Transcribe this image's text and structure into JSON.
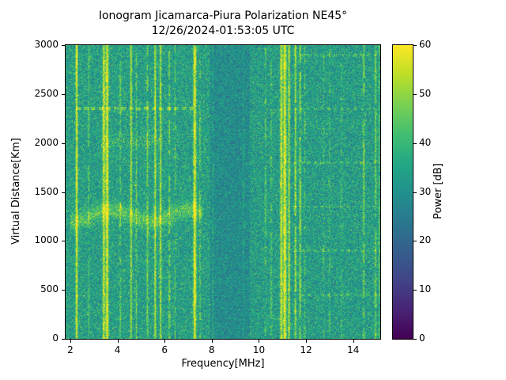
{
  "chart_data": {
    "type": "heatmap",
    "title": "Ionogram Jicamarca-Piura Polarization NE45°",
    "subtitle": "12/26/2024-01:53:05 UTC",
    "xlabel": "Frequency[MHz]",
    "ylabel": "Virtual Distance[Km]",
    "colorbar_label": "Power [dB]",
    "x_range": [
      1.8,
      15.15
    ],
    "y_range": [
      0,
      3000
    ],
    "value_range": [
      0,
      60
    ],
    "x_ticks": [
      2,
      4,
      6,
      8,
      10,
      12,
      14
    ],
    "y_ticks": [
      0,
      500,
      1000,
      1500,
      2000,
      2500,
      3000
    ],
    "colorbar_ticks": [
      0,
      10,
      20,
      30,
      40,
      50,
      60
    ],
    "colormap": "viridis",
    "colormap_stops": [
      [
        0,
        "#440154"
      ],
      [
        0.1,
        "#482475"
      ],
      [
        0.2,
        "#414487"
      ],
      [
        0.3,
        "#355f8d"
      ],
      [
        0.4,
        "#2a788e"
      ],
      [
        0.5,
        "#21918c"
      ],
      [
        0.6,
        "#22a884"
      ],
      [
        0.7,
        "#44bf70"
      ],
      [
        0.8,
        "#7ad151"
      ],
      [
        0.9,
        "#bddf26"
      ],
      [
        1,
        "#fde725"
      ]
    ],
    "noise": {
      "seed": 42
    },
    "regions": [
      {
        "f0": 1.8,
        "f1": 7.95,
        "base_db": 33.5,
        "std_db": 6,
        "speckle_p": 0.025,
        "speckle_amp": 16
      },
      {
        "f0": 7.95,
        "f1": 9.6,
        "base_db": 29.0,
        "std_db": 5,
        "speckle_p": 0.008,
        "speckle_amp": 10
      },
      {
        "f0": 9.6,
        "f1": 15.15,
        "base_db": 33.0,
        "std_db": 6,
        "speckle_p": 0.03,
        "speckle_amp": 13
      }
    ],
    "rfi_lines": [
      {
        "f": 2.27,
        "w": 0.045,
        "amp": 30,
        "duty": 1
      },
      {
        "f": 2.78,
        "w": 0.03,
        "amp": 12,
        "duty": 0.7
      },
      {
        "f": 3.42,
        "w": 0.05,
        "amp": 26,
        "duty": 1
      },
      {
        "f": 3.56,
        "w": 0.06,
        "amp": 30,
        "duty": 1
      },
      {
        "f": 4.12,
        "w": 0.035,
        "amp": 14,
        "duty": 0.6
      },
      {
        "f": 4.58,
        "w": 0.04,
        "amp": 22,
        "duty": 1
      },
      {
        "f": 4.8,
        "w": 0.03,
        "amp": 14,
        "duty": 0.8
      },
      {
        "f": 5.27,
        "w": 0.035,
        "amp": 16,
        "duty": 0.8
      },
      {
        "f": 5.6,
        "w": 0.04,
        "amp": 24,
        "duty": 1
      },
      {
        "f": 5.83,
        "w": 0.04,
        "amp": 22,
        "duty": 1
      },
      {
        "f": 6.2,
        "w": 0.035,
        "amp": 16,
        "duty": 0.8
      },
      {
        "f": 6.45,
        "w": 0.03,
        "amp": 12,
        "duty": 0.6
      },
      {
        "f": 7.28,
        "w": 0.06,
        "amp": 32,
        "duty": 1
      },
      {
        "f": 7.5,
        "w": 0.03,
        "amp": 14,
        "duty": 0.7
      },
      {
        "f": 8.05,
        "w": 0.03,
        "amp": 8,
        "duty": 0.6
      },
      {
        "f": 9.35,
        "w": 0.03,
        "amp": 7,
        "duty": 0.5
      },
      {
        "f": 10.28,
        "w": 0.035,
        "amp": 14,
        "duty": 0.55
      },
      {
        "f": 10.52,
        "w": 0.035,
        "amp": 13,
        "duty": 0.55
      },
      {
        "f": 10.95,
        "w": 0.05,
        "amp": 28,
        "duty": 1
      },
      {
        "f": 11.1,
        "w": 0.07,
        "amp": 32,
        "duty": 1
      },
      {
        "f": 11.28,
        "w": 0.04,
        "amp": 24,
        "duty": 1
      },
      {
        "f": 11.55,
        "w": 0.04,
        "amp": 22,
        "duty": 0.9
      },
      {
        "f": 11.75,
        "w": 0.04,
        "amp": 20,
        "duty": 0.9
      },
      {
        "f": 11.95,
        "w": 0.03,
        "amp": 12,
        "duty": 0.6
      },
      {
        "f": 12.75,
        "w": 0.03,
        "amp": 10,
        "duty": 0.5
      },
      {
        "f": 13.0,
        "w": 0.03,
        "amp": 10,
        "duty": 0.5
      },
      {
        "f": 13.5,
        "w": 0.03,
        "amp": 9,
        "duty": 0.5
      },
      {
        "f": 14.45,
        "w": 0.04,
        "amp": 16,
        "duty": 0.8
      },
      {
        "f": 14.95,
        "w": 0.04,
        "amp": 16,
        "duty": 0.8
      },
      {
        "f": 15.1,
        "w": 0.03,
        "amp": 12,
        "duty": 0.7
      }
    ],
    "echo_traces": [
      {
        "type": "fuzzy_band",
        "f0": 2.0,
        "f1": 7.6,
        "center_km": 1260,
        "wobble_km": 60,
        "sigma_km": 85,
        "amp_db": 14
      },
      {
        "type": "dashed_line",
        "f0": 2.2,
        "f1": 7.35,
        "km": 2350,
        "half_km": 16,
        "amp_db": 16,
        "dash_period_mhz": 0.32,
        "dash_duty": 0.62
      },
      {
        "type": "fuzzy_patch",
        "f0": 3.3,
        "f1": 5.9,
        "center_km": 2020,
        "sigma_km": 80,
        "amp_db": 7
      }
    ],
    "range_markers": {
      "km": [
        450,
        900,
        1350,
        1800,
        2350,
        2900
      ],
      "f0": 11.35,
      "f1": 15.15,
      "half_km": 11,
      "amp_db": 10,
      "dash_period_mhz": 0.28,
      "dash_duty": 0.55
    }
  }
}
